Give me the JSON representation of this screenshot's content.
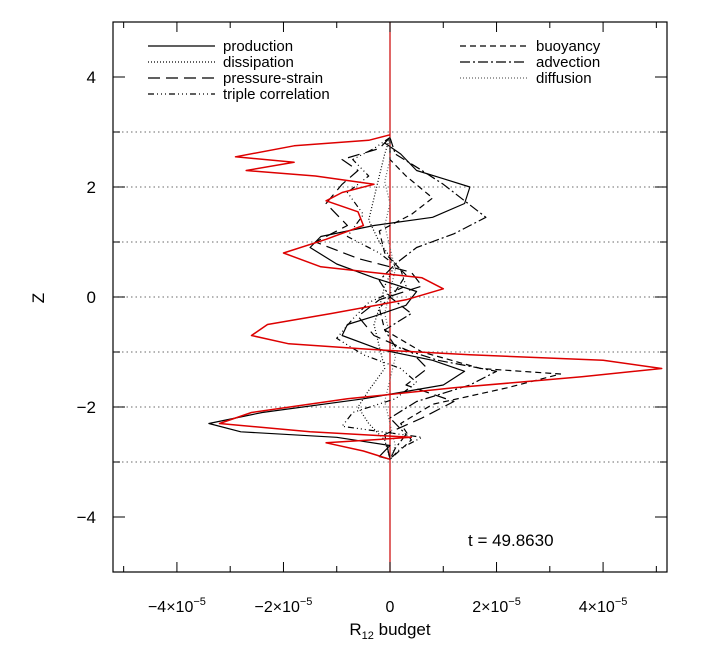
{
  "chart_data": {
    "type": "line",
    "title": "",
    "xlabel": "R",
    "xlabel_sub": "12",
    "xlabel_tail": " budget",
    "ylabel": "Z",
    "xlim": [
      -5.2e-05,
      5.2e-05
    ],
    "ylim": [
      -5,
      5
    ],
    "grid": false,
    "legend_position": "top",
    "annotation": "t = 49.8630",
    "x_tick_labels": [
      {
        "value": -4e-05,
        "mant": "−4×10",
        "exp": "−5"
      },
      {
        "value": -2e-05,
        "mant": "−2×10",
        "exp": "−5"
      },
      {
        "value": 0,
        "mant": "0",
        "exp": ""
      },
      {
        "value": 2e-05,
        "mant": "2×10",
        "exp": "−5"
      },
      {
        "value": 4e-05,
        "mant": "4×10",
        "exp": "−5"
      }
    ],
    "y_tick_labels": [
      {
        "value": 4,
        "text": "4"
      },
      {
        "value": 2,
        "text": "2"
      },
      {
        "value": 0,
        "text": "0"
      },
      {
        "value": -2,
        "text": "−2"
      },
      {
        "value": -4,
        "text": "−4"
      }
    ],
    "reference_lines": [
      -3,
      -2,
      -1,
      0,
      1,
      2,
      3
    ],
    "series": [
      {
        "name": "production",
        "color": "#000000",
        "dash": "",
        "points": [
          [
            0,
            2.9
          ],
          [
            -1e-06,
            2.8
          ],
          [
            2e-06,
            2.6
          ],
          [
            5e-06,
            2.3
          ],
          [
            1e-05,
            2.15
          ],
          [
            1.5e-05,
            2.0
          ],
          [
            1.4e-05,
            1.7
          ],
          [
            8e-06,
            1.45
          ],
          [
            -3e-06,
            1.3
          ],
          [
            -1.3e-05,
            1.1
          ],
          [
            -1.5e-05,
            0.9
          ],
          [
            -1e-05,
            0.6
          ],
          [
            -3e-06,
            0.35
          ],
          [
            5e-06,
            0.1
          ],
          [
            3e-06,
            -0.15
          ],
          [
            -3e-06,
            -0.35
          ],
          [
            -8e-06,
            -0.5
          ],
          [
            -9e-06,
            -0.7
          ],
          [
            -2e-06,
            -0.95
          ],
          [
            8e-06,
            -1.15
          ],
          [
            1.4e-05,
            -1.35
          ],
          [
            1e-05,
            -1.6
          ],
          [
            -5e-06,
            -1.85
          ],
          [
            -2.4e-05,
            -2.1
          ],
          [
            -3.4e-05,
            -2.3
          ],
          [
            -2.8e-05,
            -2.45
          ],
          [
            -1e-05,
            -2.55
          ],
          [
            0,
            -2.7
          ],
          [
            -2e-06,
            -2.9
          ],
          [
            0,
            -2.95
          ]
        ]
      },
      {
        "name": "dissipation",
        "color": "#000000",
        "dash": "1 2",
        "points": [
          [
            0,
            2.9
          ],
          [
            -1e-06,
            2.6
          ],
          [
            -2e-06,
            2.2
          ],
          [
            -3e-06,
            1.8
          ],
          [
            -4e-06,
            1.4
          ],
          [
            -2e-06,
            1.0
          ],
          [
            1e-06,
            0.6
          ],
          [
            -1e-06,
            0.2
          ],
          [
            -2e-06,
            -0.2
          ],
          [
            -3e-06,
            -0.5
          ],
          [
            -2e-06,
            -0.9
          ],
          [
            -1e-06,
            -1.3
          ],
          [
            -4e-06,
            -1.7
          ],
          [
            -6e-06,
            -2.0
          ],
          [
            -4e-06,
            -2.3
          ],
          [
            -1e-06,
            -2.6
          ],
          [
            0,
            -2.95
          ]
        ]
      },
      {
        "name": "pressure-strain",
        "color": "#000000",
        "dash": "12 6",
        "points": [
          [
            0,
            2.9
          ],
          [
            -2e-06,
            2.7
          ],
          [
            -9e-06,
            2.5
          ],
          [
            -6e-06,
            2.3
          ],
          [
            -9e-06,
            2.05
          ],
          [
            -1.2e-05,
            1.7
          ],
          [
            -8e-06,
            1.3
          ],
          [
            -1.4e-05,
            1.0
          ],
          [
            -6e-06,
            0.7
          ],
          [
            4e-06,
            0.45
          ],
          [
            6e-06,
            0.2
          ],
          [
            -2e-06,
            -0.05
          ],
          [
            -6e-06,
            -0.35
          ],
          [
            -3e-06,
            -0.7
          ],
          [
            4e-06,
            -1.0
          ],
          [
            7e-06,
            -1.3
          ],
          [
            3e-06,
            -1.6
          ],
          [
            1.2e-05,
            -1.9
          ],
          [
            6e-06,
            -2.2
          ],
          [
            -1e-06,
            -2.5
          ],
          [
            0,
            -2.95
          ]
        ]
      },
      {
        "name": "triple correlation",
        "color": "#000000",
        "dash": "6 3 1 3 1 3 1 3",
        "points": [
          [
            0,
            2.9
          ],
          [
            -3e-06,
            2.7
          ],
          [
            -7e-06,
            2.5
          ],
          [
            -4e-06,
            2.2
          ],
          [
            -8e-06,
            1.9
          ],
          [
            -5e-06,
            1.5
          ],
          [
            -8e-06,
            1.1
          ],
          [
            -2e-06,
            0.8
          ],
          [
            2e-06,
            0.5
          ],
          [
            3e-06,
            0.2
          ],
          [
            -4e-06,
            -0.1
          ],
          [
            -7e-06,
            -0.4
          ],
          [
            -1e-05,
            -0.75
          ],
          [
            -5e-06,
            -1.05
          ],
          [
            2e-06,
            -1.3
          ],
          [
            5e-06,
            -1.55
          ],
          [
            1e-06,
            -1.85
          ],
          [
            -7e-06,
            -2.1
          ],
          [
            -9e-06,
            -2.35
          ],
          [
            6e-06,
            -2.55
          ],
          [
            2e-06,
            -2.75
          ],
          [
            0,
            -2.95
          ]
        ]
      },
      {
        "name": "buoyancy",
        "color": "#000000",
        "dash": "6 4",
        "points": [
          [
            0,
            2.9
          ],
          [
            0,
            2.5
          ],
          [
            3e-06,
            2.2
          ],
          [
            8e-06,
            1.8
          ],
          [
            4e-06,
            1.5
          ],
          [
            -2e-06,
            1.2
          ],
          [
            -1e-06,
            0.8
          ],
          [
            3e-06,
            0.4
          ],
          [
            1e-06,
            0.1
          ],
          [
            -2e-06,
            -0.2
          ],
          [
            -1e-06,
            -0.6
          ],
          [
            6e-06,
            -1.0
          ],
          [
            1.7e-05,
            -1.3
          ],
          [
            3.2e-05,
            -1.4
          ],
          [
            2.2e-05,
            -1.65
          ],
          [
            8e-06,
            -1.95
          ],
          [
            2e-06,
            -2.3
          ],
          [
            4e-06,
            -2.6
          ],
          [
            0,
            -2.95
          ]
        ]
      },
      {
        "name": "advection",
        "color": "#000000",
        "dash": "10 3 2 3",
        "points": [
          [
            0,
            2.9
          ],
          [
            1e-06,
            2.6
          ],
          [
            6e-06,
            2.3
          ],
          [
            1e-05,
            2.05
          ],
          [
            1.4e-05,
            1.75
          ],
          [
            1.8e-05,
            1.45
          ],
          [
            1.2e-05,
            1.15
          ],
          [
            5e-06,
            0.9
          ],
          [
            1e-06,
            0.6
          ],
          [
            -2e-06,
            0.3
          ],
          [
            0,
            0
          ],
          [
            4e-06,
            -0.3
          ],
          [
            -1e-06,
            -0.6
          ],
          [
            1e-06,
            -0.9
          ],
          [
            9e-06,
            -1.15
          ],
          [
            2e-05,
            -1.35
          ],
          [
            1.5e-05,
            -1.6
          ],
          [
            5e-06,
            -1.9
          ],
          [
            0,
            -2.2
          ],
          [
            3e-06,
            -2.5
          ],
          [
            1e-06,
            -2.75
          ],
          [
            0,
            -2.95
          ]
        ]
      },
      {
        "name": "diffusion",
        "color": "#666666",
        "dash": "1 2",
        "points": [
          [
            0,
            2.9
          ],
          [
            0,
            2.5
          ],
          [
            -1e-06,
            2.1
          ],
          [
            0,
            1.7
          ],
          [
            -1e-06,
            1.3
          ],
          [
            0,
            0.9
          ],
          [
            1e-06,
            0.5
          ],
          [
            0,
            0.1
          ],
          [
            -1e-06,
            -0.3
          ],
          [
            0,
            -0.7
          ],
          [
            1e-06,
            -1.1
          ],
          [
            0,
            -1.5
          ],
          [
            -1e-06,
            -1.9
          ],
          [
            0,
            -2.3
          ],
          [
            1e-06,
            -2.7
          ],
          [
            0,
            -2.95
          ]
        ]
      },
      {
        "color": "#dd0000",
        "dash": "",
        "points": [
          [
            0,
            2.95
          ],
          [
            -4e-06,
            2.85
          ],
          [
            -1.8e-05,
            2.75
          ],
          [
            -2.9e-05,
            2.55
          ],
          [
            -1.8e-05,
            2.45
          ],
          [
            -2.7e-05,
            2.3
          ],
          [
            -1.4e-05,
            2.2
          ],
          [
            -3e-06,
            2.05
          ],
          [
            -9e-06,
            1.9
          ],
          [
            -1.2e-05,
            1.75
          ],
          [
            -6e-06,
            1.55
          ],
          [
            -5e-06,
            1.3
          ],
          [
            -1.2e-05,
            1.05
          ],
          [
            -2e-05,
            0.8
          ],
          [
            -1.3e-05,
            0.55
          ],
          [
            6e-06,
            0.35
          ],
          [
            1e-05,
            0.15
          ],
          [
            3e-06,
            -0.05
          ],
          [
            -1.1e-05,
            -0.3
          ],
          [
            -2.3e-05,
            -0.5
          ],
          [
            -2.6e-05,
            -0.7
          ],
          [
            -1.9e-05,
            -0.85
          ],
          [
            -4e-06,
            -0.95
          ],
          [
            1.5e-05,
            -1.05
          ],
          [
            4e-05,
            -1.15
          ],
          [
            5.1e-05,
            -1.3
          ],
          [
            3.6e-05,
            -1.45
          ],
          [
            1.2e-05,
            -1.65
          ],
          [
            -8e-06,
            -1.85
          ],
          [
            -2.6e-05,
            -2.1
          ],
          [
            -3.2e-05,
            -2.3
          ],
          [
            -1.5e-05,
            -2.45
          ],
          [
            4e-06,
            -2.55
          ],
          [
            -1.2e-05,
            -2.65
          ],
          [
            -5e-06,
            -2.8
          ],
          [
            0,
            -2.95
          ]
        ]
      }
    ],
    "legend_left": [
      "production",
      "dissipation",
      "pressure-strain",
      "triple correlation"
    ],
    "legend_right": [
      "buoyancy",
      "advection",
      "diffusion"
    ]
  }
}
